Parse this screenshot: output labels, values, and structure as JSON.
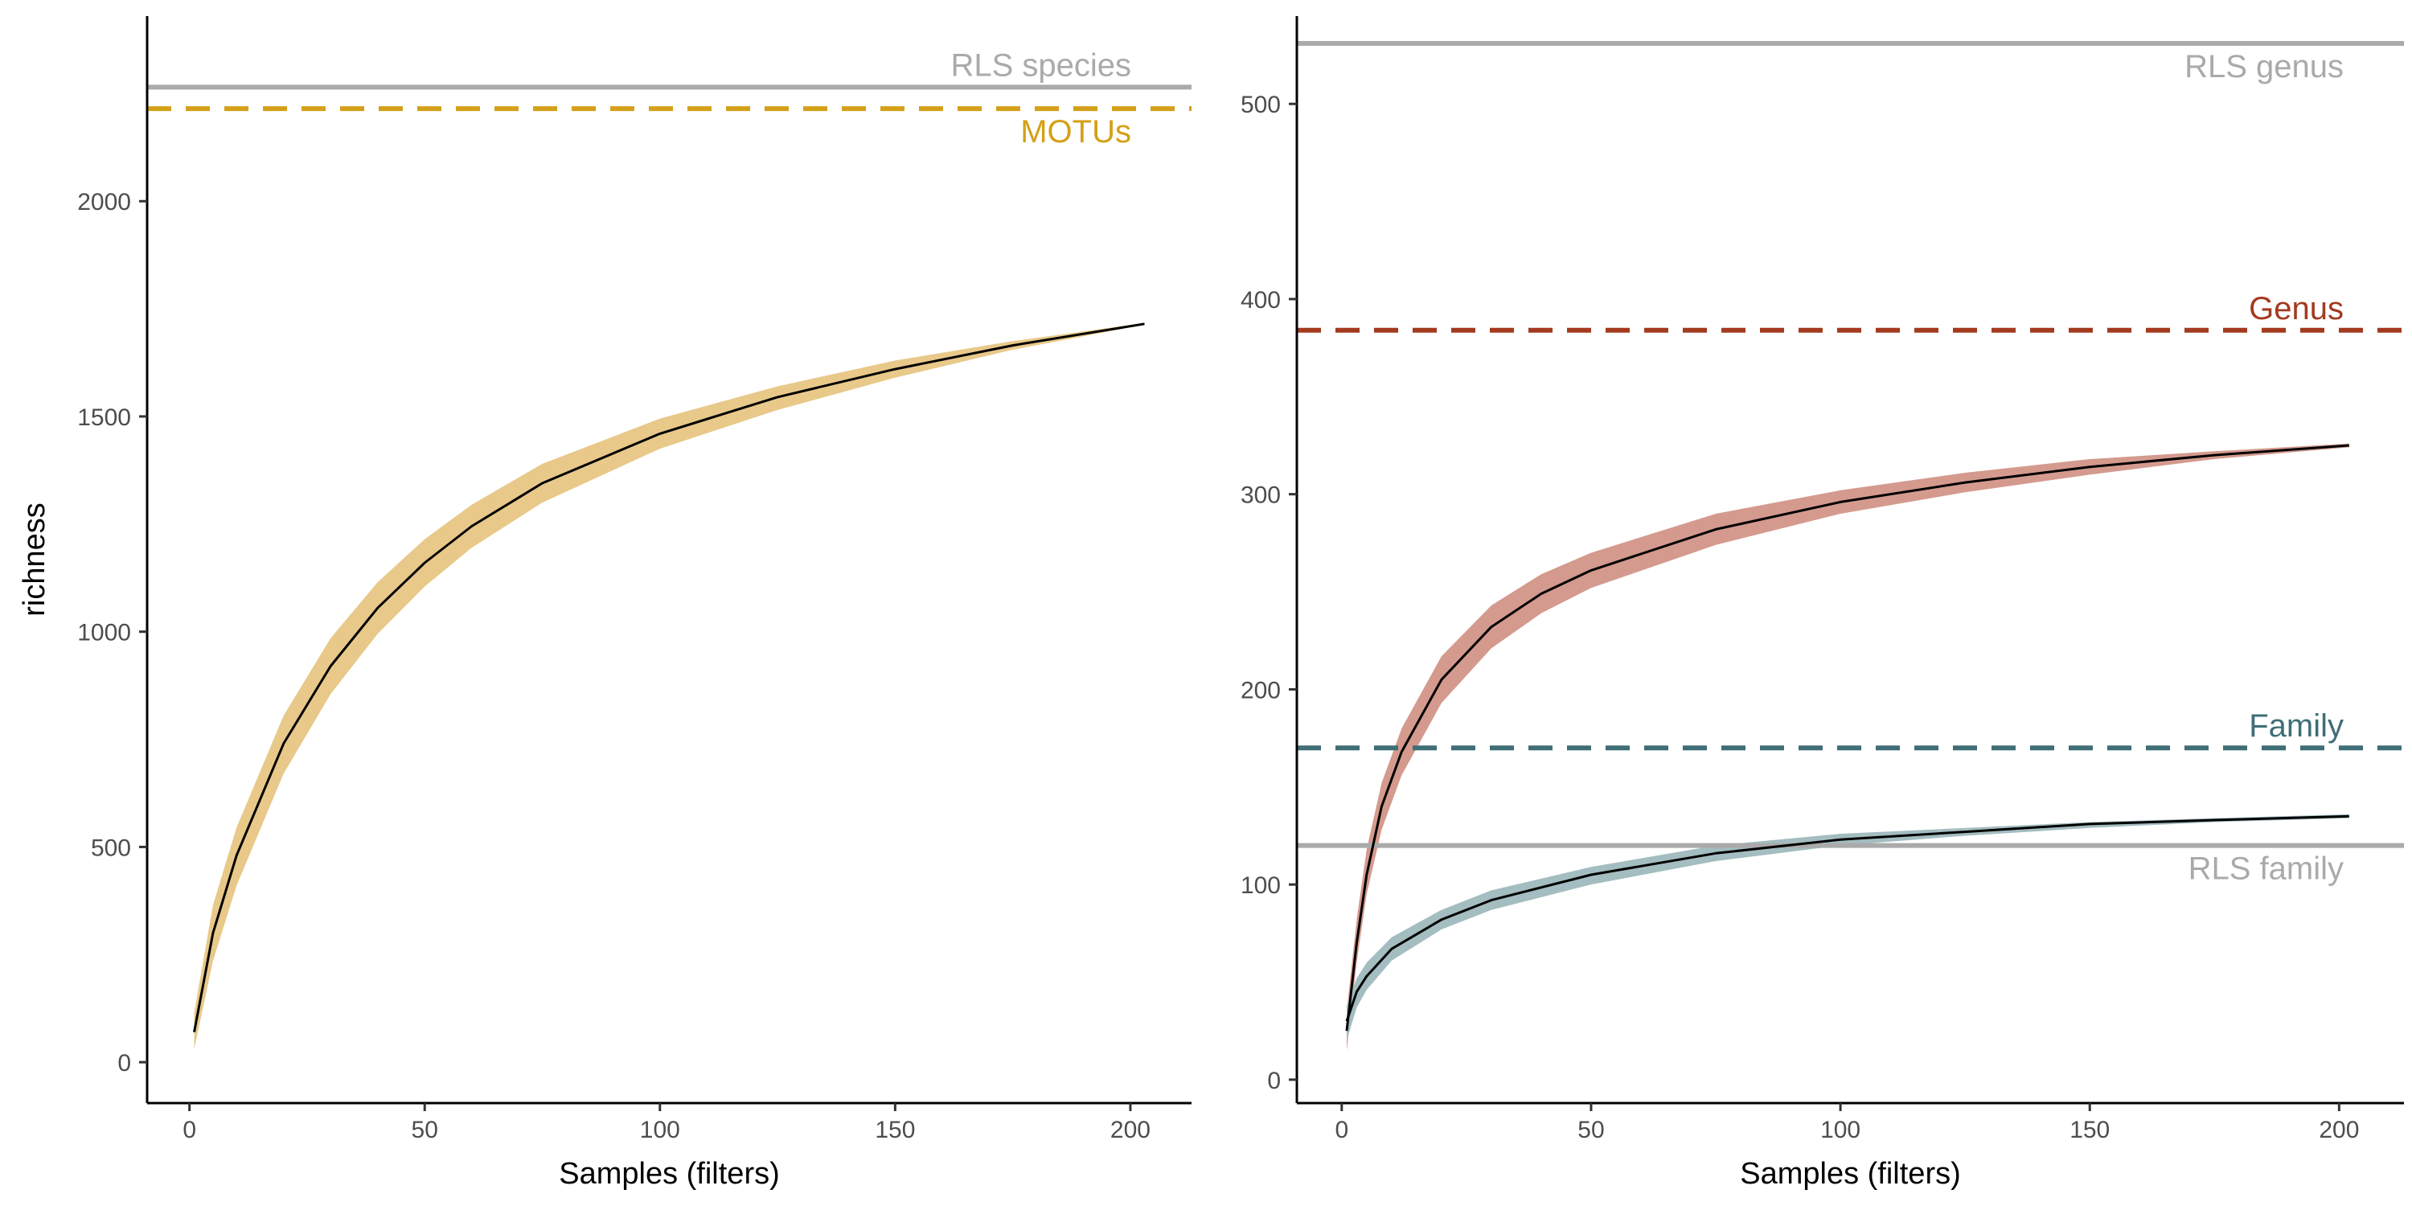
{
  "chart_data": [
    {
      "type": "line",
      "xlabel": "Samples (filters)",
      "ylabel": "richness",
      "xlim": [
        -9,
        213
      ],
      "ylim": [
        -95,
        2430
      ],
      "xticks": [
        0,
        50,
        100,
        150,
        200
      ],
      "yticks": [
        0,
        500,
        1000,
        1500,
        2000
      ],
      "grid": false,
      "series": [
        {
          "curve_color": "#000000",
          "band_color": "#e8c98a",
          "points": [
            {
              "x": 1,
              "y": 70,
              "lo": 30,
              "hi": 115
            },
            {
              "x": 5,
              "y": 300,
              "lo": 235,
              "hi": 365
            },
            {
              "x": 10,
              "y": 480,
              "lo": 410,
              "hi": 545
            },
            {
              "x": 20,
              "y": 740,
              "lo": 670,
              "hi": 805
            },
            {
              "x": 30,
              "y": 920,
              "lo": 855,
              "hi": 985
            },
            {
              "x": 40,
              "y": 1055,
              "lo": 995,
              "hi": 1115
            },
            {
              "x": 50,
              "y": 1160,
              "lo": 1105,
              "hi": 1215
            },
            {
              "x": 60,
              "y": 1245,
              "lo": 1195,
              "hi": 1295
            },
            {
              "x": 75,
              "y": 1345,
              "lo": 1300,
              "hi": 1390
            },
            {
              "x": 100,
              "y": 1460,
              "lo": 1425,
              "hi": 1495
            },
            {
              "x": 125,
              "y": 1545,
              "lo": 1515,
              "hi": 1570
            },
            {
              "x": 150,
              "y": 1610,
              "lo": 1590,
              "hi": 1630
            },
            {
              "x": 175,
              "y": 1665,
              "lo": 1655,
              "hi": 1675
            },
            {
              "x": 203,
              "y": 1715,
              "lo": 1713,
              "hi": 1717
            }
          ]
        }
      ],
      "reference_lines": [
        {
          "label": "RLS species",
          "y": 2265,
          "style": "solid",
          "color": "#aaaaaa",
          "label_position": "above-right"
        },
        {
          "label": "MOTUs",
          "y": 2215,
          "style": "dashed",
          "color": "#d4a017",
          "label_position": "below-right"
        }
      ]
    },
    {
      "type": "line",
      "xlabel": "Samples (filters)",
      "ylabel": "",
      "xlim": [
        -9,
        213
      ],
      "ylim": [
        -12,
        545
      ],
      "xticks": [
        0,
        50,
        100,
        150,
        200
      ],
      "yticks": [
        0,
        100,
        200,
        300,
        400,
        500
      ],
      "grid": false,
      "series": [
        {
          "curve_color": "#000000",
          "band_color": "#d49a8e",
          "points": [
            {
              "x": 1,
              "y": 25,
              "lo": 15,
              "hi": 35
            },
            {
              "x": 3,
              "y": 70,
              "lo": 60,
              "hi": 82
            },
            {
              "x": 5,
              "y": 105,
              "lo": 95,
              "hi": 118
            },
            {
              "x": 8,
              "y": 140,
              "lo": 128,
              "hi": 152
            },
            {
              "x": 12,
              "y": 168,
              "lo": 156,
              "hi": 180
            },
            {
              "x": 20,
              "y": 205,
              "lo": 193,
              "hi": 217
            },
            {
              "x": 30,
              "y": 232,
              "lo": 221,
              "hi": 243
            },
            {
              "x": 40,
              "y": 249,
              "lo": 239,
              "hi": 259
            },
            {
              "x": 50,
              "y": 261,
              "lo": 252,
              "hi": 270
            },
            {
              "x": 75,
              "y": 282,
              "lo": 274,
              "hi": 290
            },
            {
              "x": 100,
              "y": 296,
              "lo": 290,
              "hi": 302
            },
            {
              "x": 125,
              "y": 306,
              "lo": 301,
              "hi": 311
            },
            {
              "x": 150,
              "y": 314,
              "lo": 310,
              "hi": 318
            },
            {
              "x": 175,
              "y": 320,
              "lo": 318,
              "hi": 322
            },
            {
              "x": 202,
              "y": 325,
              "lo": 324,
              "hi": 326
            }
          ]
        },
        {
          "curve_color": "#000000",
          "band_color": "#a3bdc0",
          "points": [
            {
              "x": 1,
              "y": 30,
              "lo": 20,
              "hi": 38
            },
            {
              "x": 3,
              "y": 45,
              "lo": 37,
              "hi": 52
            },
            {
              "x": 5,
              "y": 53,
              "lo": 46,
              "hi": 60
            },
            {
              "x": 10,
              "y": 67,
              "lo": 61,
              "hi": 73
            },
            {
              "x": 20,
              "y": 82,
              "lo": 77,
              "hi": 87
            },
            {
              "x": 30,
              "y": 92,
              "lo": 87,
              "hi": 97
            },
            {
              "x": 50,
              "y": 105,
              "lo": 100,
              "hi": 109
            },
            {
              "x": 75,
              "y": 116,
              "lo": 112,
              "hi": 120
            },
            {
              "x": 100,
              "y": 123,
              "lo": 120,
              "hi": 126
            },
            {
              "x": 125,
              "y": 127,
              "lo": 125,
              "hi": 129
            },
            {
              "x": 150,
              "y": 131,
              "lo": 129,
              "hi": 132
            },
            {
              "x": 175,
              "y": 133,
              "lo": 132,
              "hi": 134
            },
            {
              "x": 202,
              "y": 135,
              "lo": 134,
              "hi": 136
            }
          ]
        }
      ],
      "reference_lines": [
        {
          "label": "RLS genus",
          "y": 531,
          "style": "solid",
          "color": "#aaaaaa",
          "label_position": "below-right"
        },
        {
          "label": "Genus",
          "y": 384,
          "style": "dashed",
          "color": "#a33a1f",
          "label_position": "above-right"
        },
        {
          "label": "Family",
          "y": 170,
          "style": "dashed",
          "color": "#3f6e76",
          "label_position": "above-right"
        },
        {
          "label": "RLS family",
          "y": 120,
          "style": "solid",
          "color": "#aaaaaa",
          "label_position": "below-right"
        }
      ]
    }
  ]
}
